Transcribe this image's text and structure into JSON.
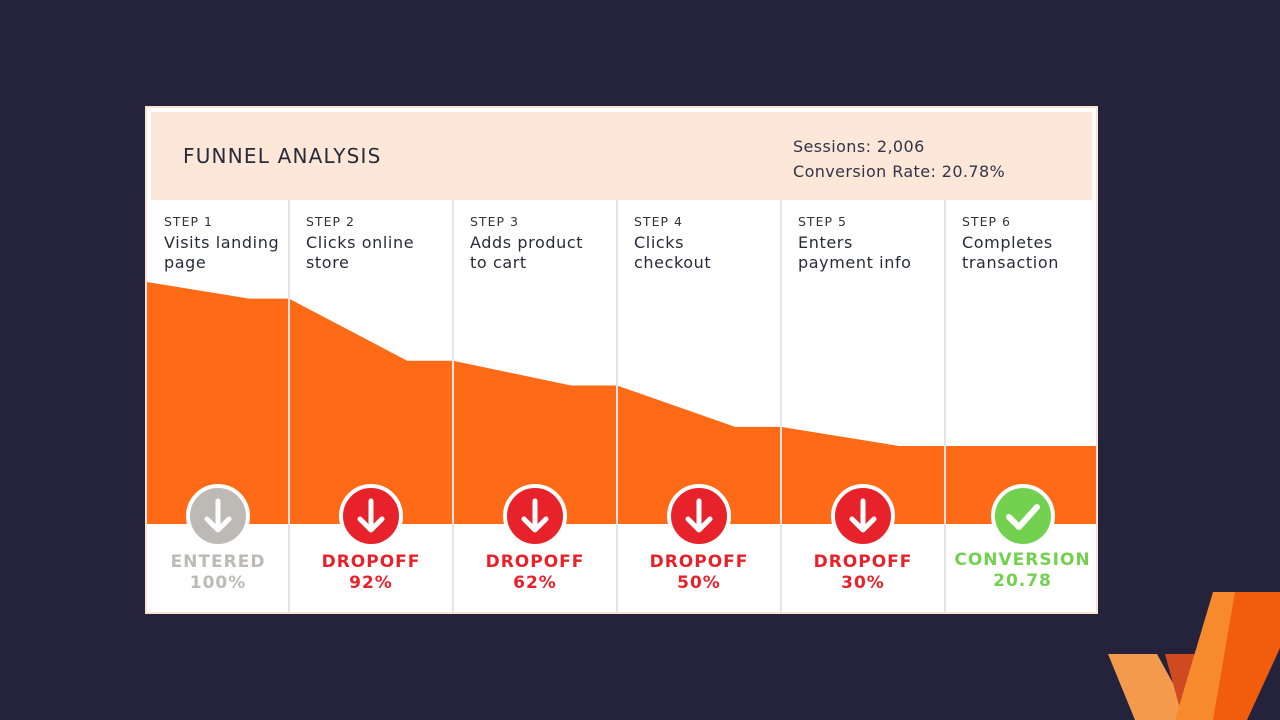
{
  "header": {
    "title": "FUNNEL ANALYSIS",
    "sessions": "Sessions: 2,006",
    "conversion_rate": "Conversion Rate: 20.78%"
  },
  "colors": {
    "funnel": "#ff6a17",
    "dropoff": "#e8222a",
    "entered": "#bdbab5",
    "conversion": "#74d14f",
    "header_bg": "#fce7d8"
  },
  "steps": [
    {
      "num": "STEP 1",
      "name": "Visits landing page",
      "status": "ENTERED",
      "value": "100%",
      "kind": "entered",
      "icon": "arrow-down-icon"
    },
    {
      "num": "STEP 2",
      "name": "Clicks online store",
      "status": "DROPOFF",
      "value": "92%",
      "kind": "dropoff",
      "icon": "arrow-down-icon"
    },
    {
      "num": "STEP 3",
      "name": "Adds product to cart",
      "status": "DROPOFF",
      "value": "62%",
      "kind": "dropoff",
      "icon": "arrow-down-icon"
    },
    {
      "num": "STEP 4",
      "name": "Clicks checkout",
      "status": "DROPOFF",
      "value": "50%",
      "kind": "dropoff",
      "icon": "arrow-down-icon"
    },
    {
      "num": "STEP 5",
      "name": "Enters payment info",
      "status": "DROPOFF",
      "value": "30%",
      "kind": "dropoff",
      "icon": "arrow-down-icon"
    },
    {
      "num": "STEP 6",
      "name": "Completes transaction",
      "status": "CONVERSION",
      "value": "20.78",
      "kind": "conversion",
      "icon": "checkmark-icon"
    }
  ],
  "chart_data": {
    "type": "area",
    "categories": [
      "Visits landing page",
      "Clicks online store",
      "Adds product to cart",
      "Clicks checkout",
      "Enters payment info",
      "Completes transaction"
    ],
    "values": [
      100,
      92,
      62,
      50,
      30,
      20.78
    ]
  }
}
